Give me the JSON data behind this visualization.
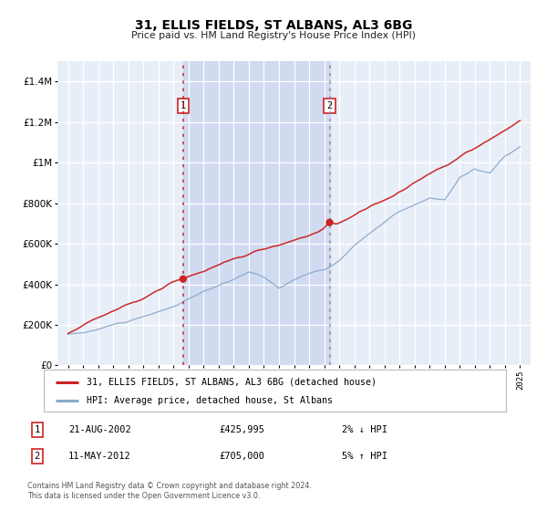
{
  "title": "31, ELLIS FIELDS, ST ALBANS, AL3 6BG",
  "subtitle": "Price paid vs. HM Land Registry's House Price Index (HPI)",
  "red_legend": "31, ELLIS FIELDS, ST ALBANS, AL3 6BG (detached house)",
  "blue_legend": "HPI: Average price, detached house, St Albans",
  "sale1_date": "21-AUG-2002",
  "sale1_price": "£425,995",
  "sale1_hpi": "2% ↓ HPI",
  "sale2_date": "11-MAY-2012",
  "sale2_price": "£705,000",
  "sale2_hpi": "5% ↑ HPI",
  "footnote": "Contains HM Land Registry data © Crown copyright and database right 2024.\nThis data is licensed under the Open Government Licence v3.0.",
  "sale1_year": 2002.64,
  "sale1_value": 425995,
  "sale2_year": 2012.36,
  "sale2_value": 705000,
  "ylim_max": 1500000,
  "ylim_display_max": 1400000,
  "background_color": "#e8eef8",
  "plot_bg_color": "#e8eef8",
  "red_color": "#cc2222",
  "blue_color": "#88aacc",
  "shade_color": "#d0daf0",
  "grid_color": "#ffffff",
  "hpi_years": [
    1995,
    1996,
    1997,
    1998,
    1999,
    2000,
    2001,
    2002,
    2003,
    2004,
    2005,
    2006,
    2007,
    2008,
    2009,
    2010,
    2011,
    2012,
    2013,
    2014,
    2015,
    2016,
    2017,
    2018,
    2019,
    2020,
    2021,
    2022,
    2023,
    2024,
    2025
  ],
  "hpi_values": [
    155000,
    165000,
    182000,
    200000,
    222000,
    248000,
    272000,
    296000,
    335000,
    378000,
    412000,
    448000,
    488000,
    468000,
    418000,
    450000,
    480000,
    500000,
    548000,
    628000,
    688000,
    748000,
    800000,
    832000,
    858000,
    840000,
    948000,
    1000000,
    978000,
    1060000,
    1110000
  ],
  "red_anchors_years": [
    1995,
    2002.64,
    2012.36,
    2025
  ],
  "red_anchors_values": [
    158000,
    425995,
    705000,
    1230000
  ]
}
